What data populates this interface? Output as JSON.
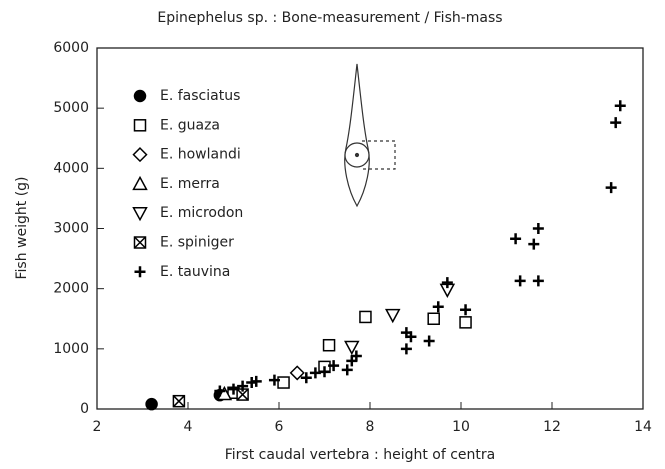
{
  "chart_data": {
    "type": "scatter",
    "title": "Epinephelus sp. : Bone-measurement / Fish-mass",
    "x_label": "First caudal vertebra : height of centra",
    "y_label": "Fish weight (g)",
    "xlim": [
      2,
      14
    ],
    "xticks": [
      2,
      4,
      6,
      8,
      10,
      12,
      14
    ],
    "ylim": [
      0,
      6000
    ],
    "yticks": [
      0,
      1000,
      2000,
      3000,
      4000,
      5000,
      6000
    ],
    "legend": "upper left",
    "series": [
      {
        "name": "E. fasciatus",
        "color": "#000000",
        "marker": "filled-circle",
        "x": [
          3.2,
          4.7
        ],
        "values": [
          80,
          230
        ]
      },
      {
        "name": "E. guaza",
        "color": "#000000",
        "marker": "square",
        "x": [
          5.0,
          6.1,
          7.0,
          7.1,
          7.9,
          9.4,
          10.1
        ],
        "values": [
          270,
          440,
          700,
          1060,
          1530,
          1500,
          1440
        ]
      },
      {
        "name": "E. howlandi",
        "color": "#000000",
        "marker": "diamond",
        "x": [
          6.4
        ],
        "values": [
          600
        ]
      },
      {
        "name": "E. merra",
        "color": "#000000",
        "marker": "triangle-up",
        "x": [
          4.8
        ],
        "values": [
          250
        ]
      },
      {
        "name": "E. microdon",
        "color": "#000000",
        "marker": "triangle-down",
        "x": [
          7.6,
          8.5,
          9.7
        ],
        "values": [
          1030,
          1560,
          1980
        ]
      },
      {
        "name": "E. spiniger",
        "color": "#000000",
        "marker": "square-x",
        "x": [
          3.8,
          5.2
        ],
        "values": [
          130,
          240
        ]
      },
      {
        "name": "E. tauvina",
        "color": "#000000",
        "marker": "plus",
        "x": [
          4.7,
          5.0,
          5.2,
          5.4,
          5.5,
          5.9,
          6.6,
          6.8,
          7.0,
          7.2,
          7.5,
          7.6,
          7.7,
          8.8,
          8.8,
          8.9,
          9.3,
          9.5,
          9.7,
          10.1,
          11.2,
          11.3,
          11.6,
          11.7,
          11.7,
          13.3,
          13.4,
          13.5
        ],
        "values": [
          300,
          330,
          380,
          440,
          460,
          480,
          520,
          600,
          620,
          720,
          650,
          800,
          880,
          1000,
          1270,
          1200,
          1130,
          1700,
          2100,
          1650,
          2830,
          2130,
          2740,
          3000,
          2130,
          3680,
          4760,
          5040
        ]
      }
    ]
  }
}
